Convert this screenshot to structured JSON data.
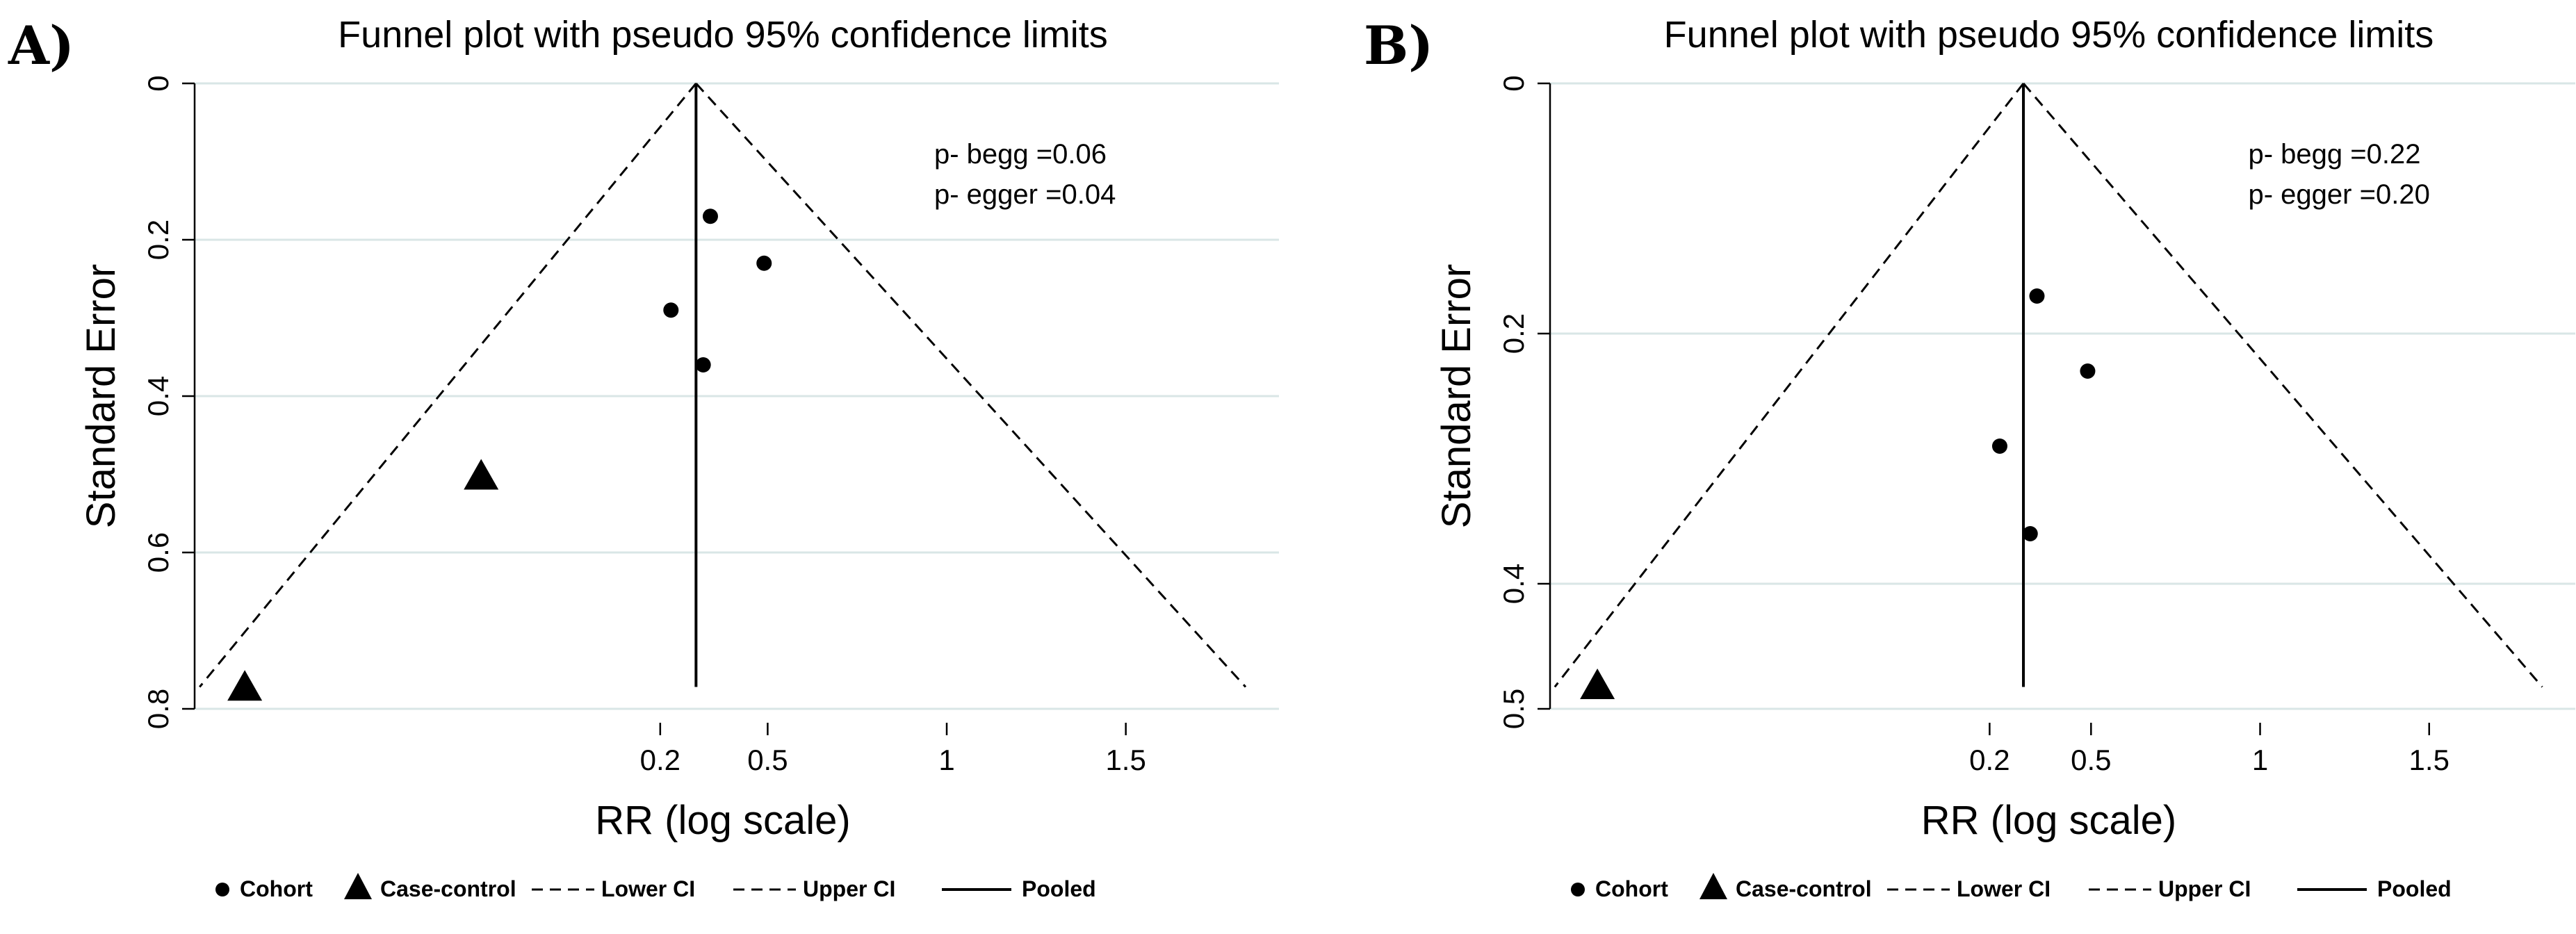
{
  "legend": {
    "cohort": "Cohort",
    "case_control": "Case-control",
    "lower_ci": "Lower CI",
    "upper_ci": "Upper CI",
    "pooled": "Pooled"
  },
  "chart_data": [
    {
      "panel": "A)",
      "type": "scatter",
      "title": "Funnel plot with pseudo 95% confidence limits",
      "xlabel": "RR (log scale)",
      "ylabel": "Standard Error",
      "y_reversed": true,
      "ylim": [
        0,
        0.8
      ],
      "xlim": [
        -1.1,
        1.85
      ],
      "x_ticks": [
        0.2,
        0.5,
        1,
        1.5
      ],
      "x_tick_labels": [
        "0.2",
        "0.5",
        "1",
        "1.5"
      ],
      "y_ticks": [
        0,
        0.2,
        0.4,
        0.6,
        0.8
      ],
      "y_tick_labels": [
        "0",
        "0.2",
        "0.4",
        "0.6",
        "0.8"
      ],
      "pooled_x": 0.3,
      "annotations": [
        "p- begg =0.06",
        "p- egger =0.04"
      ],
      "series": [
        {
          "name": "Cohort",
          "marker": "circle",
          "x": [
            0.34,
            0.49,
            0.23,
            0.32
          ],
          "y": [
            0.17,
            0.23,
            0.29,
            0.36
          ]
        },
        {
          "name": "Case-control",
          "marker": "triangle",
          "x": [
            -0.3,
            -0.96
          ],
          "y": [
            0.5,
            0.77
          ]
        }
      ],
      "lines": [
        {
          "name": "Lower CI",
          "style": "dashed"
        },
        {
          "name": "Upper CI",
          "style": "dashed"
        },
        {
          "name": "Pooled",
          "style": "solid"
        }
      ],
      "legend_position": "bottom"
    },
    {
      "panel": "B)",
      "type": "scatter",
      "title": "Funnel plot with pseudo 95% confidence limits",
      "xlabel": "RR (log scale)",
      "ylabel": "Standard Error",
      "y_reversed": true,
      "ylim": [
        0,
        0.5
      ],
      "xlim": [
        -1.1,
        1.85
      ],
      "x_ticks": [
        0.2,
        0.5,
        1,
        1.5
      ],
      "x_tick_labels": [
        "0.2",
        "0.5",
        "1",
        "1.5"
      ],
      "y_ticks": [
        0,
        0.2,
        0.4,
        0.5
      ],
      "y_tick_labels": [
        "0",
        "0.2",
        "0.4",
        "0.5"
      ],
      "pooled_x": 0.3,
      "annotations": [
        "p- begg =0.22",
        "p- egger =0.20"
      ],
      "series": [
        {
          "name": "Cohort",
          "marker": "circle",
          "x": [
            0.34,
            0.49,
            0.23,
            0.32
          ],
          "y": [
            0.17,
            0.23,
            0.29,
            0.36
          ]
        },
        {
          "name": "Case-control",
          "marker": "triangle",
          "x": [
            -0.96
          ],
          "y": [
            0.48
          ]
        }
      ],
      "lines": [
        {
          "name": "Lower CI",
          "style": "dashed"
        },
        {
          "name": "Upper CI",
          "style": "dashed"
        },
        {
          "name": "Pooled",
          "style": "solid"
        }
      ],
      "legend_position": "bottom"
    }
  ]
}
